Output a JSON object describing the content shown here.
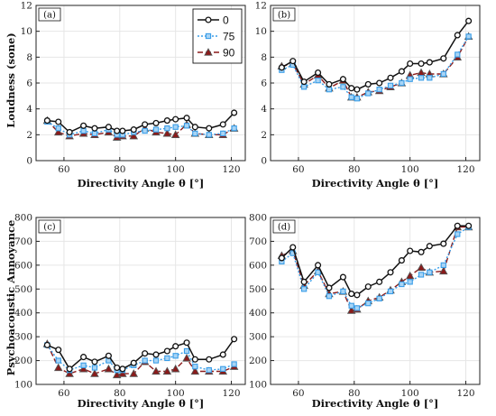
{
  "chart_data": [
    {
      "type": "line",
      "panel_label": "(a)",
      "xlabel": "Directivity Angle θ [°]",
      "ylabel": "Loudness (sone)",
      "xlim": [
        50,
        125
      ],
      "ylim": [
        0,
        12
      ],
      "xticks": [
        60,
        80,
        100,
        120
      ],
      "yticks": [
        0,
        2,
        4,
        6,
        8,
        10,
        12
      ],
      "grid": true,
      "legend": "top-right",
      "x": [
        54,
        58,
        62,
        67,
        71,
        76,
        79,
        81,
        85,
        89,
        93,
        97,
        100,
        104,
        107,
        112,
        117,
        121
      ],
      "series": [
        {
          "name": "0",
          "values": [
            3.1,
            3.0,
            2.2,
            2.7,
            2.5,
            2.6,
            2.3,
            2.3,
            2.4,
            2.8,
            2.9,
            3.1,
            3.2,
            3.3,
            2.6,
            2.5,
            2.8,
            3.7
          ]
        },
        {
          "name": "75",
          "values": [
            3.0,
            2.5,
            2.0,
            2.3,
            2.1,
            2.4,
            2.0,
            2.0,
            2.2,
            2.3,
            2.4,
            2.5,
            2.6,
            2.7,
            2.1,
            2.0,
            2.1,
            2.5
          ]
        },
        {
          "name": "90",
          "values": [
            3.1,
            2.2,
            1.9,
            2.1,
            2.0,
            2.2,
            1.8,
            1.9,
            1.9,
            2.5,
            2.2,
            2.1,
            2.0,
            2.8,
            2.1,
            2.0,
            2.0,
            2.5
          ]
        }
      ]
    },
    {
      "type": "line",
      "panel_label": "(b)",
      "xlabel": "Directivity Angle θ [°]",
      "ylabel": "",
      "xlim": [
        50,
        125
      ],
      "ylim": [
        0,
        12
      ],
      "xticks": [
        60,
        80,
        100,
        120
      ],
      "yticks": [
        0,
        2,
        4,
        6,
        8,
        10,
        12
      ],
      "grid": true,
      "x": [
        54,
        58,
        62,
        67,
        71,
        76,
        79,
        81,
        85,
        89,
        93,
        97,
        100,
        104,
        107,
        112,
        117,
        121
      ],
      "series": [
        {
          "name": "0",
          "values": [
            7.2,
            7.7,
            6.1,
            6.8,
            5.9,
            6.3,
            5.6,
            5.5,
            5.9,
            6.0,
            6.4,
            6.9,
            7.5,
            7.5,
            7.6,
            7.9,
            9.7,
            10.8
          ]
        },
        {
          "name": "75",
          "values": [
            7.0,
            7.4,
            5.7,
            6.2,
            5.5,
            5.7,
            4.9,
            4.8,
            5.2,
            5.5,
            5.8,
            6.0,
            6.3,
            6.4,
            6.4,
            6.7,
            8.2,
            9.6
          ]
        },
        {
          "name": "90",
          "values": [
            7.3,
            7.5,
            5.9,
            6.6,
            5.6,
            6.2,
            4.9,
            4.9,
            5.3,
            5.4,
            5.7,
            6.0,
            6.6,
            6.8,
            6.7,
            6.7,
            8.0,
            9.6
          ]
        }
      ]
    },
    {
      "type": "line",
      "panel_label": "(c)",
      "xlabel": "Directivity Angle θ [°]",
      "ylabel": "Psychoacoustic Annoyance",
      "xlim": [
        50,
        125
      ],
      "ylim": [
        100,
        800
      ],
      "xticks": [
        60,
        80,
        100,
        120
      ],
      "yticks": [
        100,
        200,
        300,
        400,
        500,
        600,
        700,
        800
      ],
      "grid": true,
      "x": [
        54,
        58,
        62,
        67,
        71,
        76,
        79,
        81,
        85,
        89,
        93,
        97,
        100,
        104,
        107,
        112,
        117,
        121
      ],
      "series": [
        {
          "name": "0",
          "values": [
            265,
            245,
            165,
            215,
            195,
            220,
            170,
            165,
            190,
            230,
            225,
            240,
            260,
            275,
            205,
            205,
            225,
            290
          ]
        },
        {
          "name": "75",
          "values": [
            265,
            200,
            160,
            180,
            170,
            200,
            160,
            160,
            180,
            200,
            200,
            210,
            220,
            240,
            175,
            160,
            165,
            185
          ]
        },
        {
          "name": "90",
          "values": [
            270,
            170,
            145,
            165,
            145,
            165,
            140,
            145,
            145,
            195,
            155,
            155,
            165,
            210,
            155,
            155,
            155,
            175
          ]
        }
      ]
    },
    {
      "type": "line",
      "panel_label": "(d)",
      "xlabel": "Directivity Angle θ [°]",
      "ylabel": "",
      "xlim": [
        50,
        125
      ],
      "ylim": [
        100,
        800
      ],
      "xticks": [
        60,
        80,
        100,
        120
      ],
      "yticks": [
        100,
        200,
        300,
        400,
        500,
        600,
        700,
        800
      ],
      "grid": true,
      "x": [
        54,
        58,
        62,
        67,
        71,
        76,
        79,
        81,
        85,
        89,
        93,
        97,
        100,
        104,
        107,
        112,
        117,
        121
      ],
      "series": [
        {
          "name": "0",
          "values": [
            630,
            675,
            530,
            600,
            505,
            550,
            480,
            475,
            510,
            530,
            570,
            620,
            660,
            655,
            680,
            690,
            765,
            765
          ]
        },
        {
          "name": "75",
          "values": [
            615,
            650,
            500,
            570,
            470,
            490,
            430,
            420,
            440,
            460,
            490,
            520,
            530,
            560,
            570,
            600,
            730,
            760
          ]
        },
        {
          "name": "90",
          "values": [
            640,
            660,
            515,
            575,
            480,
            490,
            410,
            415,
            450,
            465,
            495,
            530,
            555,
            590,
            570,
            575,
            760,
            760
          ]
        }
      ]
    }
  ],
  "legend": {
    "entries": [
      "0",
      "75",
      "90"
    ]
  },
  "styles": {
    "series_colors": [
      "#111111",
      "#3a9ee8",
      "#8b1a1a"
    ],
    "marker_fills": [
      "#ffffff",
      "#a8d4f5",
      "#8b1a1a"
    ],
    "marker_strokes": [
      "#111111",
      "#3a9ee8",
      "#555555"
    ],
    "markers": [
      "circle",
      "square",
      "triangle"
    ],
    "dashes": [
      "none",
      "2 2",
      "6 3"
    ],
    "grid_color": "#e6e6e6",
    "axis_color": "#222222"
  }
}
